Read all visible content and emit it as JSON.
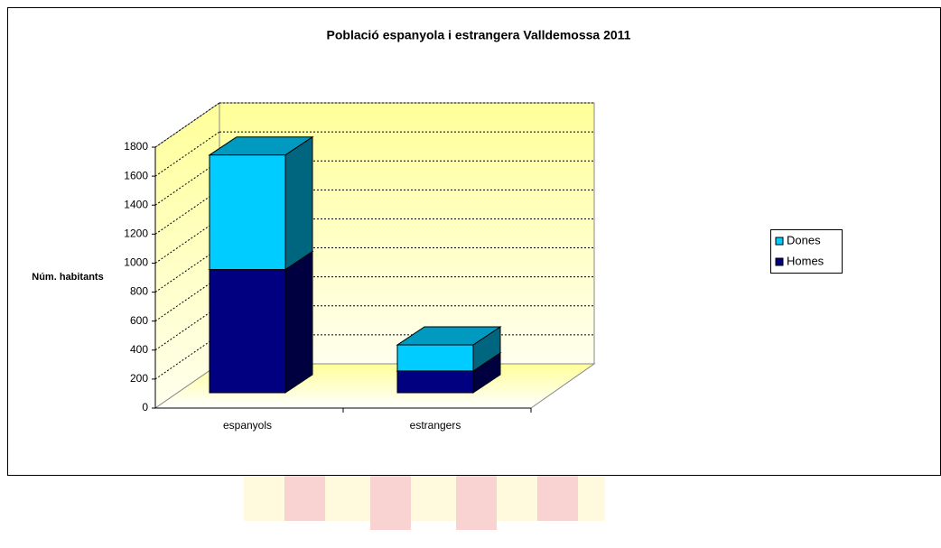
{
  "chart_data": {
    "type": "bar3d_stacked",
    "title": "Població espanyola i estrangera Valldemossa 2011",
    "y_label": "Núm. habitants",
    "categories": [
      "espanyols",
      "estrangers"
    ],
    "series": [
      {
        "name": "Homes",
        "color": "#000080",
        "values": [
          850,
          150
        ]
      },
      {
        "name": "Dones",
        "color": "#00ccff",
        "values": [
          790,
          180
        ]
      }
    ],
    "ylim": [
      0,
      1800
    ],
    "yticks": [
      0,
      200,
      400,
      600,
      800,
      1000,
      1200,
      1400,
      1600,
      1800
    ],
    "grid": true,
    "legend": "right"
  }
}
